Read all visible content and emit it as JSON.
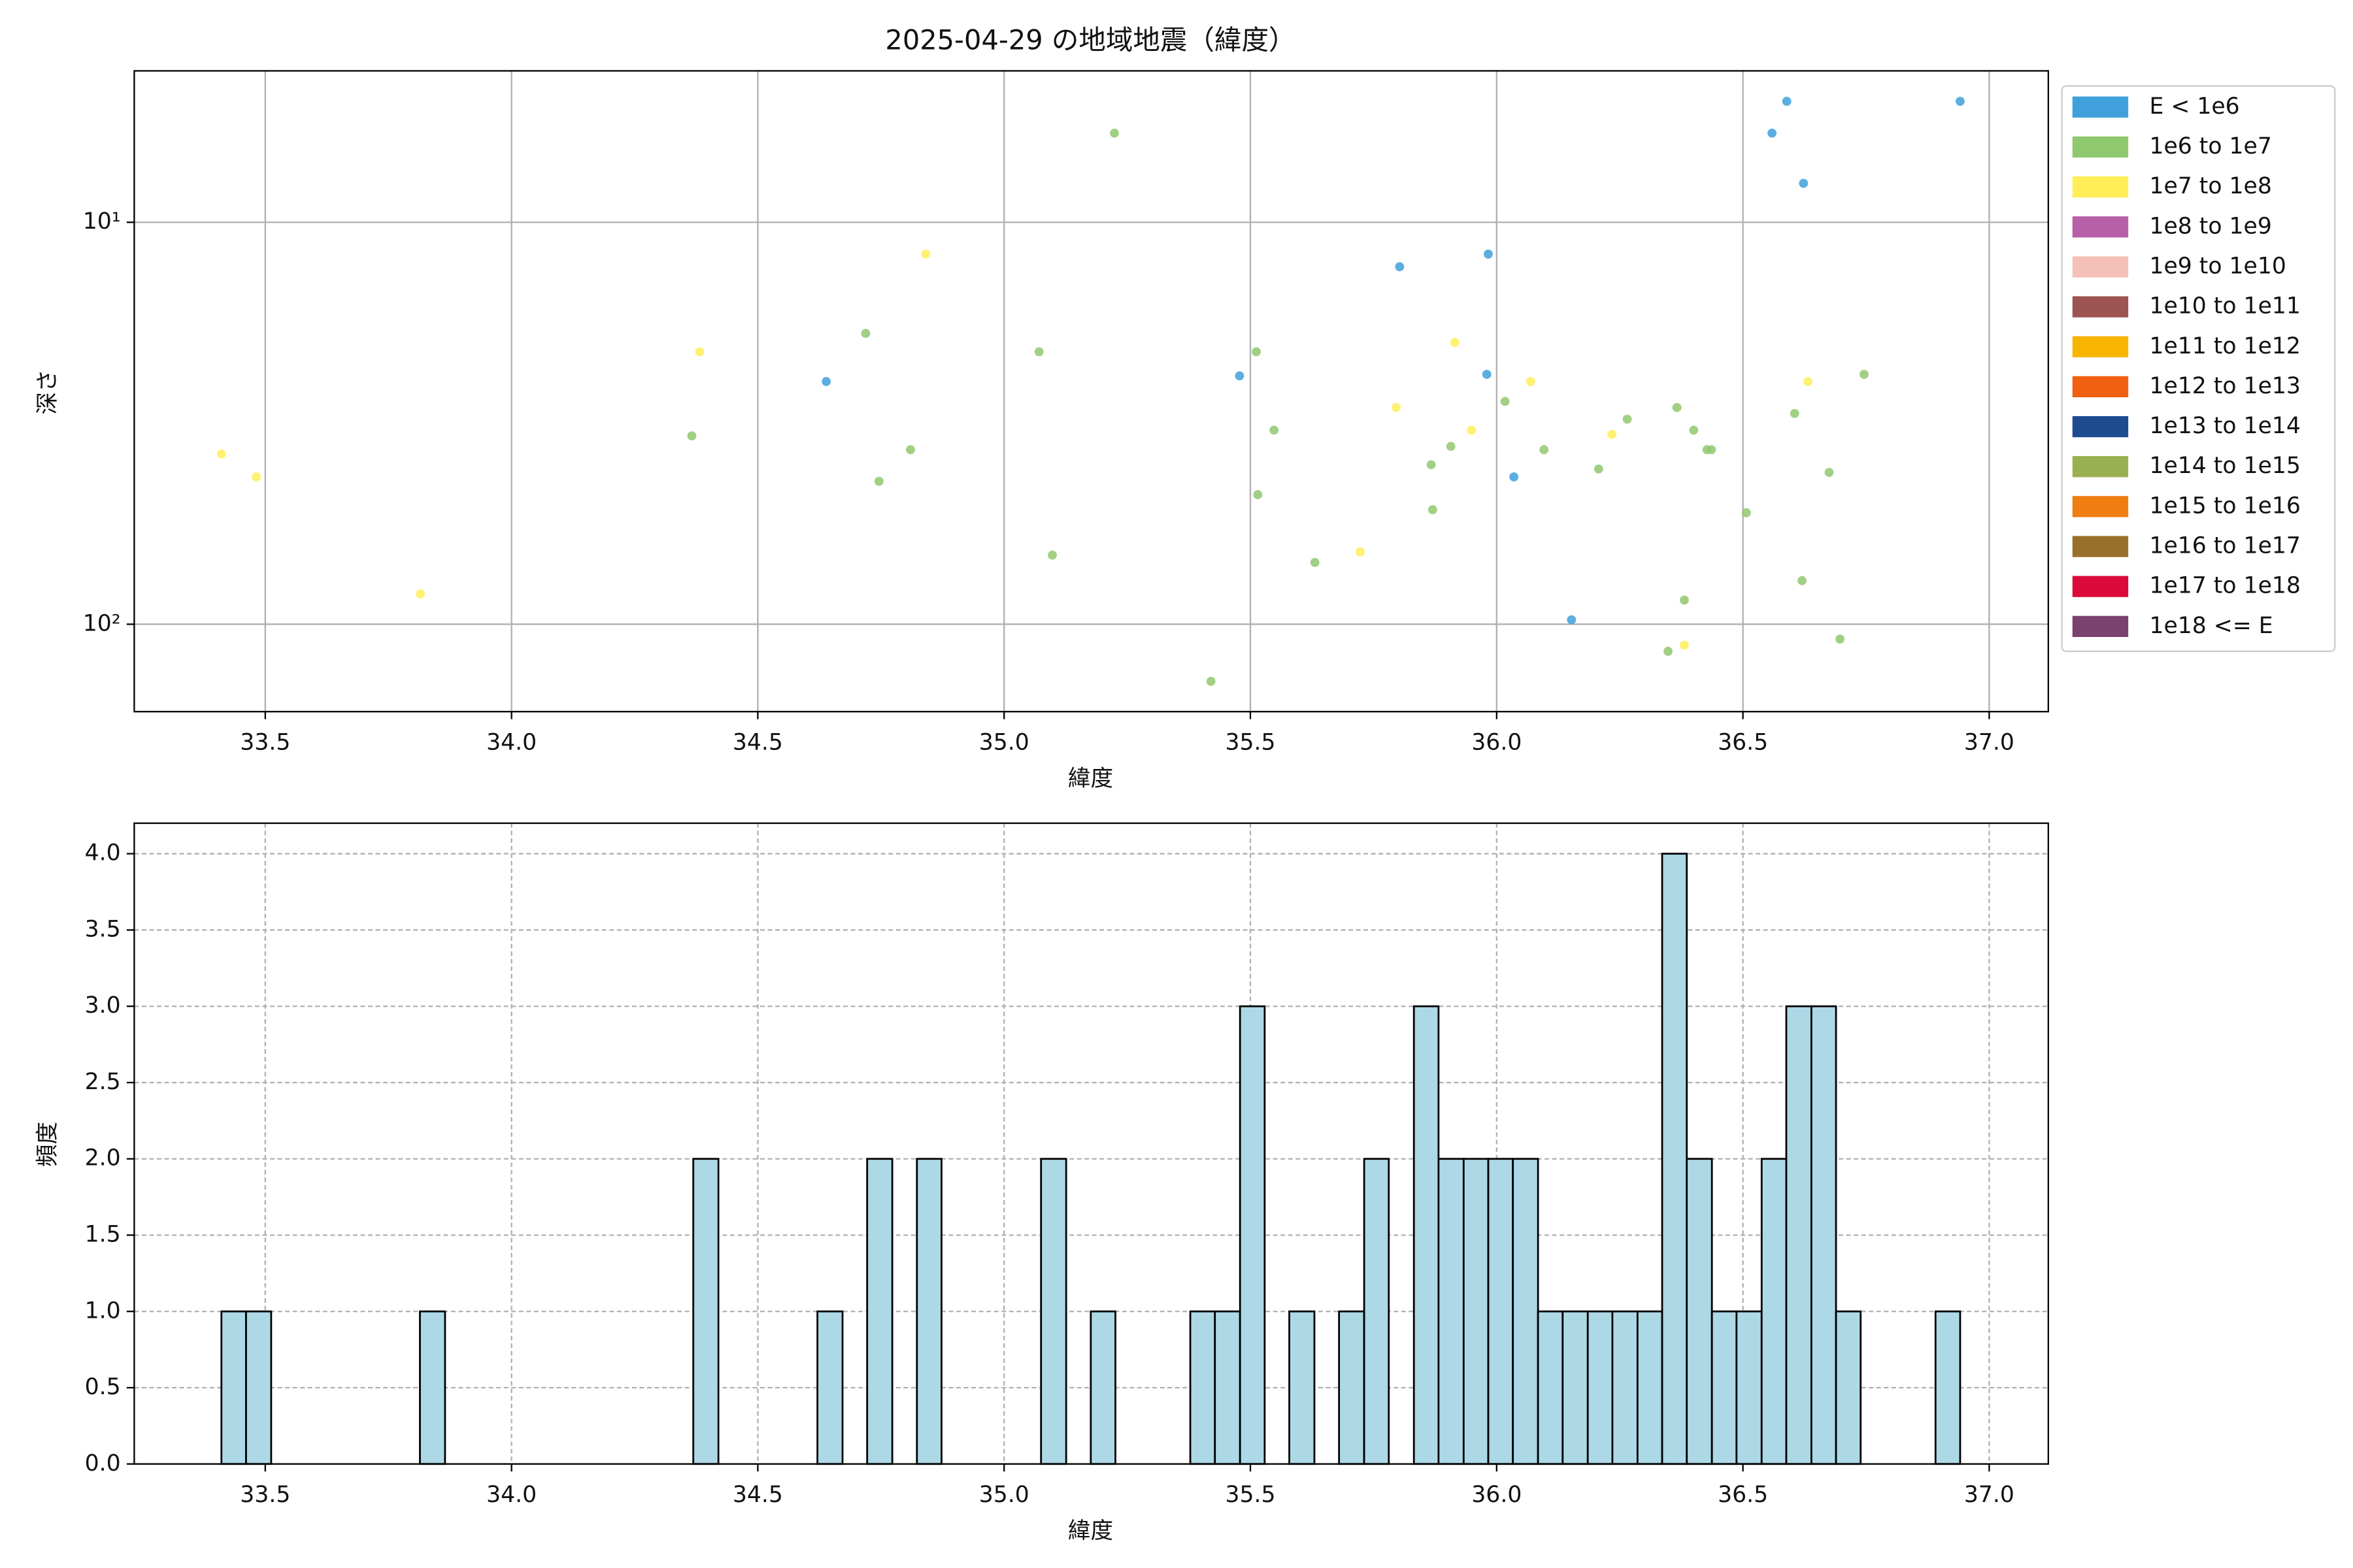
{
  "chart_data": [
    {
      "type": "scatter",
      "title": "2025-04-29 の地域地震（緯度）",
      "x_label": "緯度",
      "y_label": "深さ",
      "log_y": true,
      "invert_y": true,
      "grid": true,
      "legend": "outside upper right",
      "xlim": [
        33.234,
        37.12
      ],
      "ylim": [
        4.2,
        165
      ],
      "xticks": [
        33.5,
        {
          "value": 34,
          "label": "34.0"
        },
        34.5,
        {
          "value": 35,
          "label": "35.0"
        },
        35.5,
        {
          "value": 36,
          "label": "36.0"
        },
        36.5,
        {
          "value": 37,
          "label": "37.0"
        }
      ],
      "yticks": [
        {
          "value": 10,
          "label": "10¹"
        },
        {
          "value": 100,
          "label": "10²"
        }
      ],
      "series": [
        {
          "name": "E < 1e6",
          "color": "#40a0dc",
          "x": [
            36.589,
            36.941,
            36.559,
            36.623,
            35.803,
            35.983,
            35.478,
            34.639,
            35.98,
            36.035,
            36.152
          ],
          "y": [
            5.0,
            5.0,
            6.0,
            8.0,
            12.9,
            12.0,
            24.1,
            24.9,
            23.9,
            43.0,
            97.5
          ]
        },
        {
          "name": "1e6 to 1e7",
          "color": "#90c870",
          "x": [
            35.224,
            34.719,
            35.071,
            35.512,
            34.366,
            34.746,
            34.81,
            35.098,
            35.548,
            35.515,
            35.631,
            35.867,
            35.907,
            35.87,
            36.017,
            36.096,
            36.207,
            36.265,
            36.366,
            36.4,
            36.427,
            36.436,
            36.507,
            36.605,
            36.675,
            36.746,
            36.62,
            36.381,
            36.348,
            36.697,
            35.42
          ],
          "y": [
            6.0,
            18.9,
            21.0,
            21.0,
            34.0,
            44.1,
            36.8,
            67.3,
            32.9,
            47.6,
            70.2,
            40.1,
            36.1,
            51.9,
            27.9,
            36.8,
            41.1,
            30.9,
            28.9,
            32.9,
            36.8,
            36.8,
            52.8,
            29.9,
            41.9,
            23.9,
            77.9,
            87.1,
            116.8,
            108.9,
            138.7
          ]
        },
        {
          "name": "1e7 to 1e8",
          "color": "#ffee58",
          "x": [
            33.411,
            33.482,
            33.815,
            34.382,
            34.841,
            35.723,
            35.796,
            35.915,
            35.949,
            36.069,
            36.234,
            36.632,
            36.381
          ],
          "y": [
            37.7,
            43.0,
            84.1,
            21.0,
            12.0,
            66.1,
            28.9,
            19.9,
            32.9,
            24.9,
            33.7,
            24.9,
            112.8
          ]
        },
        {
          "name": "1e8 to 1e9",
          "color": "#b760a8",
          "x": [],
          "y": []
        },
        {
          "name": "1e9 to 1e10",
          "color": "#f4c0b8",
          "x": [],
          "y": []
        },
        {
          "name": "1e10 to 1e11",
          "color": "#9b5450",
          "x": [],
          "y": []
        },
        {
          "name": "1e11 to 1e12",
          "color": "#f7b500",
          "x": [],
          "y": []
        },
        {
          "name": "1e12 to 1e13",
          "color": "#f06010",
          "x": [],
          "y": []
        },
        {
          "name": "1e13 to 1e14",
          "color": "#1e4a90",
          "x": [],
          "y": []
        },
        {
          "name": "1e14 to 1e15",
          "color": "#9ab050",
          "x": [],
          "y": []
        },
        {
          "name": "1e15 to 1e16",
          "color": "#ef7d10",
          "x": [],
          "y": []
        },
        {
          "name": "1e16 to 1e17",
          "color": "#98702a",
          "x": [],
          "y": []
        },
        {
          "name": "1e17 to 1e18",
          "color": "#dc0a3a",
          "x": [],
          "y": []
        },
        {
          "name": "1e18 <= E",
          "color": "#7a426e",
          "x": [],
          "y": []
        }
      ]
    },
    {
      "type": "histogram",
      "x_label": "緯度",
      "y_label": "頻度",
      "color": "#add8e6",
      "edgecolor": "#000000",
      "grid": true,
      "xlim": [
        33.234,
        37.12
      ],
      "ylim": [
        0,
        4.2
      ],
      "xticks": [
        33.5,
        {
          "value": 34,
          "label": "34.0"
        },
        34.5,
        {
          "value": 35,
          "label": "35.0"
        },
        35.5,
        {
          "value": 36,
          "label": "36.0"
        },
        36.5,
        {
          "value": 37,
          "label": "37.0"
        }
      ],
      "yticks": [
        {
          "value": 0,
          "label": "0.0"
        },
        0.5,
        {
          "value": 1,
          "label": "1.0"
        },
        1.5,
        {
          "value": 2,
          "label": "2.0"
        },
        2.5,
        {
          "value": 3,
          "label": "3.0"
        },
        3.5,
        {
          "value": 4,
          "label": "4.0"
        }
      ],
      "bins": [
        33.411,
        33.461,
        33.512,
        33.562,
        33.613,
        33.663,
        33.714,
        33.764,
        33.814,
        33.865,
        33.915,
        33.966,
        34.016,
        34.067,
        34.117,
        34.167,
        34.218,
        34.268,
        34.319,
        34.369,
        34.42,
        34.47,
        34.52,
        34.571,
        34.621,
        34.672,
        34.722,
        34.773,
        34.823,
        34.873,
        34.924,
        34.974,
        35.025,
        35.075,
        35.126,
        35.176,
        35.226,
        35.277,
        35.327,
        35.378,
        35.428,
        35.479,
        35.529,
        35.579,
        35.63,
        35.68,
        35.731,
        35.781,
        35.832,
        35.882,
        35.933,
        35.983,
        36.033,
        36.084,
        36.134,
        36.185,
        36.235,
        36.286,
        36.336,
        36.386,
        36.437,
        36.487,
        36.538,
        36.588,
        36.639,
        36.689,
        36.739,
        36.79,
        36.84,
        36.891,
        36.941
      ],
      "counts": [
        1,
        1,
        0,
        0,
        0,
        0,
        0,
        0,
        1,
        0,
        0,
        0,
        0,
        0,
        0,
        0,
        0,
        0,
        0,
        2,
        0,
        0,
        0,
        0,
        1,
        0,
        2,
        0,
        2,
        0,
        0,
        0,
        0,
        2,
        0,
        1,
        0,
        0,
        0,
        1,
        1,
        3,
        0,
        1,
        0,
        1,
        2,
        0,
        3,
        2,
        2,
        2,
        2,
        1,
        1,
        1,
        1,
        1,
        4,
        2,
        1,
        1,
        2,
        3,
        3,
        1,
        0,
        0,
        0,
        1
      ]
    }
  ]
}
